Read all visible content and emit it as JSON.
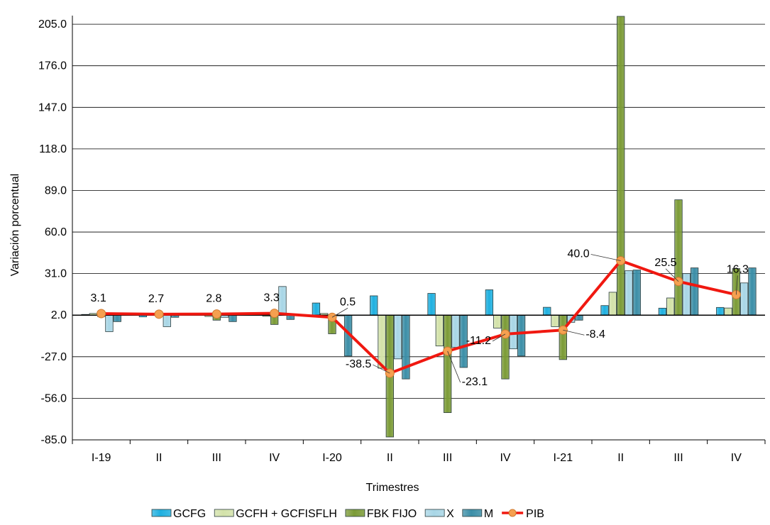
{
  "chart_data": {
    "type": "bar",
    "title": "",
    "xlabel": "Trimestres",
    "ylabel": "Variación porcentual",
    "ylim": [
      -85.0,
      211.0
    ],
    "yticks": [
      "205.0",
      "176.0",
      "147.0",
      "118.0",
      "89.0",
      "60.0",
      "31.0",
      "2.0",
      "-27.0",
      "-56.0",
      "-85.0"
    ],
    "ytick_values": [
      205,
      176,
      147,
      118,
      89,
      60,
      31,
      2,
      -27,
      -56,
      -85
    ],
    "grid": true,
    "legend_position": "bottom",
    "categories": [
      "I-19",
      "II",
      "III",
      "IV",
      "I-20",
      "II",
      "III",
      "IV",
      "I-21",
      "II",
      "III",
      "IV"
    ],
    "series": [
      {
        "name": "GCFG",
        "kind": "bar",
        "color": "#1fb0e0",
        "values": [
          2.5,
          0.8,
          2.7,
          2.7,
          10.5,
          15.5,
          17.2,
          19.7,
          7.5,
          8.7,
          6.9,
          7.4
        ]
      },
      {
        "name": "GCFH + GCFISFLH",
        "kind": "bar",
        "color": "#d3e2a9",
        "values": [
          3.2,
          3.4,
          1.1,
          1.2,
          3.2,
          -35.0,
          -19.5,
          -7.0,
          -6.0,
          18.0,
          14.0,
          7.0
        ]
      },
      {
        "name": "FBK FIJO",
        "kind": "bar",
        "color": "#7b9b36",
        "values": [
          1.0,
          1.5,
          -1.5,
          -4.5,
          -11.0,
          -83.0,
          -66.0,
          -42.5,
          -29.0,
          210.5,
          82.5,
          34.5
        ]
      },
      {
        "name": "X",
        "kind": "bar",
        "color": "#a8d6e6",
        "values": [
          -9.5,
          -6.0,
          0.5,
          22.0,
          1.5,
          -28.5,
          -20.5,
          -21.5,
          -3.0,
          33.0,
          31.0,
          24.5
        ]
      },
      {
        "name": "M",
        "kind": "bar",
        "color": "#3b8ea7",
        "values": [
          -2.5,
          0.5,
          -2.5,
          -1.0,
          -26.5,
          -42.5,
          -34.5,
          -26.5,
          -1.5,
          33.5,
          35.0,
          35.0
        ]
      },
      {
        "name": "PIB",
        "kind": "line",
        "color": "#f01810",
        "marker_color": "#f5a050",
        "values": [
          3.1,
          2.7,
          2.8,
          3.3,
          0.5,
          -38.5,
          -23.1,
          -11.2,
          -8.4,
          40.0,
          25.5,
          16.3
        ]
      }
    ],
    "data_labels": [
      "3.1",
      "2.7",
      "2.8",
      "3.3",
      "0.5",
      "-38.5",
      "-23.1",
      "-11.2",
      "-8.4",
      "40.0",
      "25.5",
      "16.3"
    ]
  }
}
